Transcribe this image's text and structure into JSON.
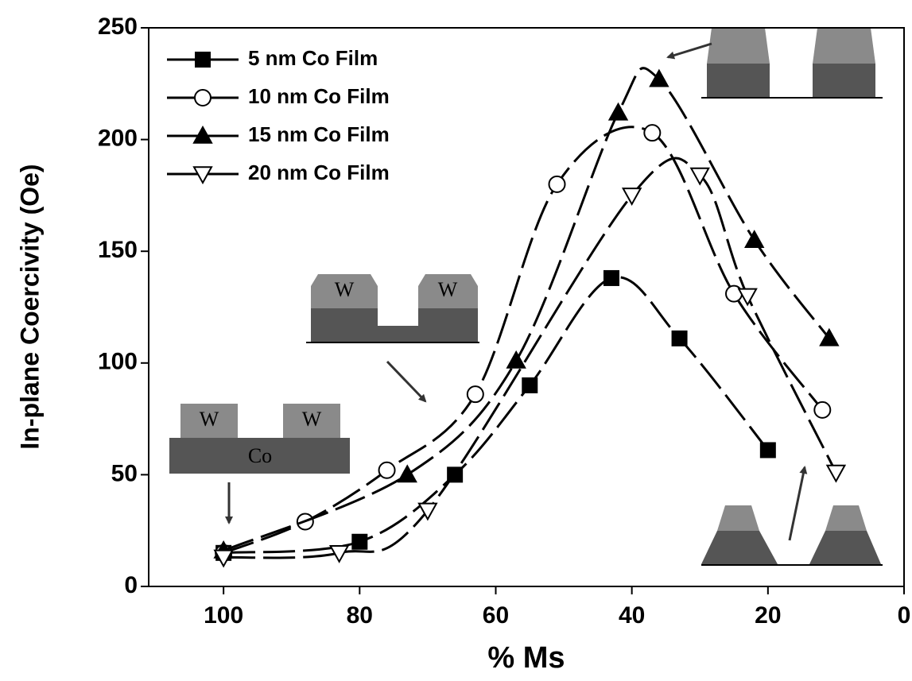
{
  "chart_data": {
    "type": "line",
    "xlabel": "% Ms",
    "ylabel": "In-plane Coercivity (Oe)",
    "xlim": [
      111,
      0
    ],
    "ylim": [
      0,
      250
    ],
    "xticks": [
      100,
      80,
      60,
      40,
      20,
      0
    ],
    "yticks": [
      0,
      50,
      100,
      150,
      200,
      250
    ],
    "legend": "upper left",
    "annotations": [
      "W",
      "W",
      "W",
      "W",
      "Co"
    ],
    "series": [
      {
        "name": "5 nm Co Film",
        "color": "#000000",
        "marker": "square",
        "x": [
          100,
          80,
          66,
          55,
          43,
          33,
          20
        ],
        "values": [
          15,
          20,
          50,
          90,
          138,
          111,
          61
        ]
      },
      {
        "name": "10 nm Co Film",
        "color": "#000000",
        "marker": "circle-open",
        "x": [
          100,
          88,
          76,
          63,
          51,
          37,
          25,
          12
        ],
        "values": [
          15,
          29,
          52,
          86,
          180,
          203,
          131,
          79
        ]
      },
      {
        "name": "15 nm Co Film",
        "color": "#000000",
        "marker": "triangle-up",
        "x": [
          100,
          73,
          57,
          42,
          36,
          22,
          11
        ],
        "values": [
          16,
          50,
          101,
          212,
          227,
          155,
          111
        ]
      },
      {
        "name": "20 nm Co Film",
        "color": "#000000",
        "marker": "triangle-down-open",
        "x": [
          100,
          83,
          70,
          40,
          30,
          23,
          10
        ],
        "values": [
          13,
          15,
          34,
          175,
          184,
          130,
          51
        ]
      }
    ]
  }
}
